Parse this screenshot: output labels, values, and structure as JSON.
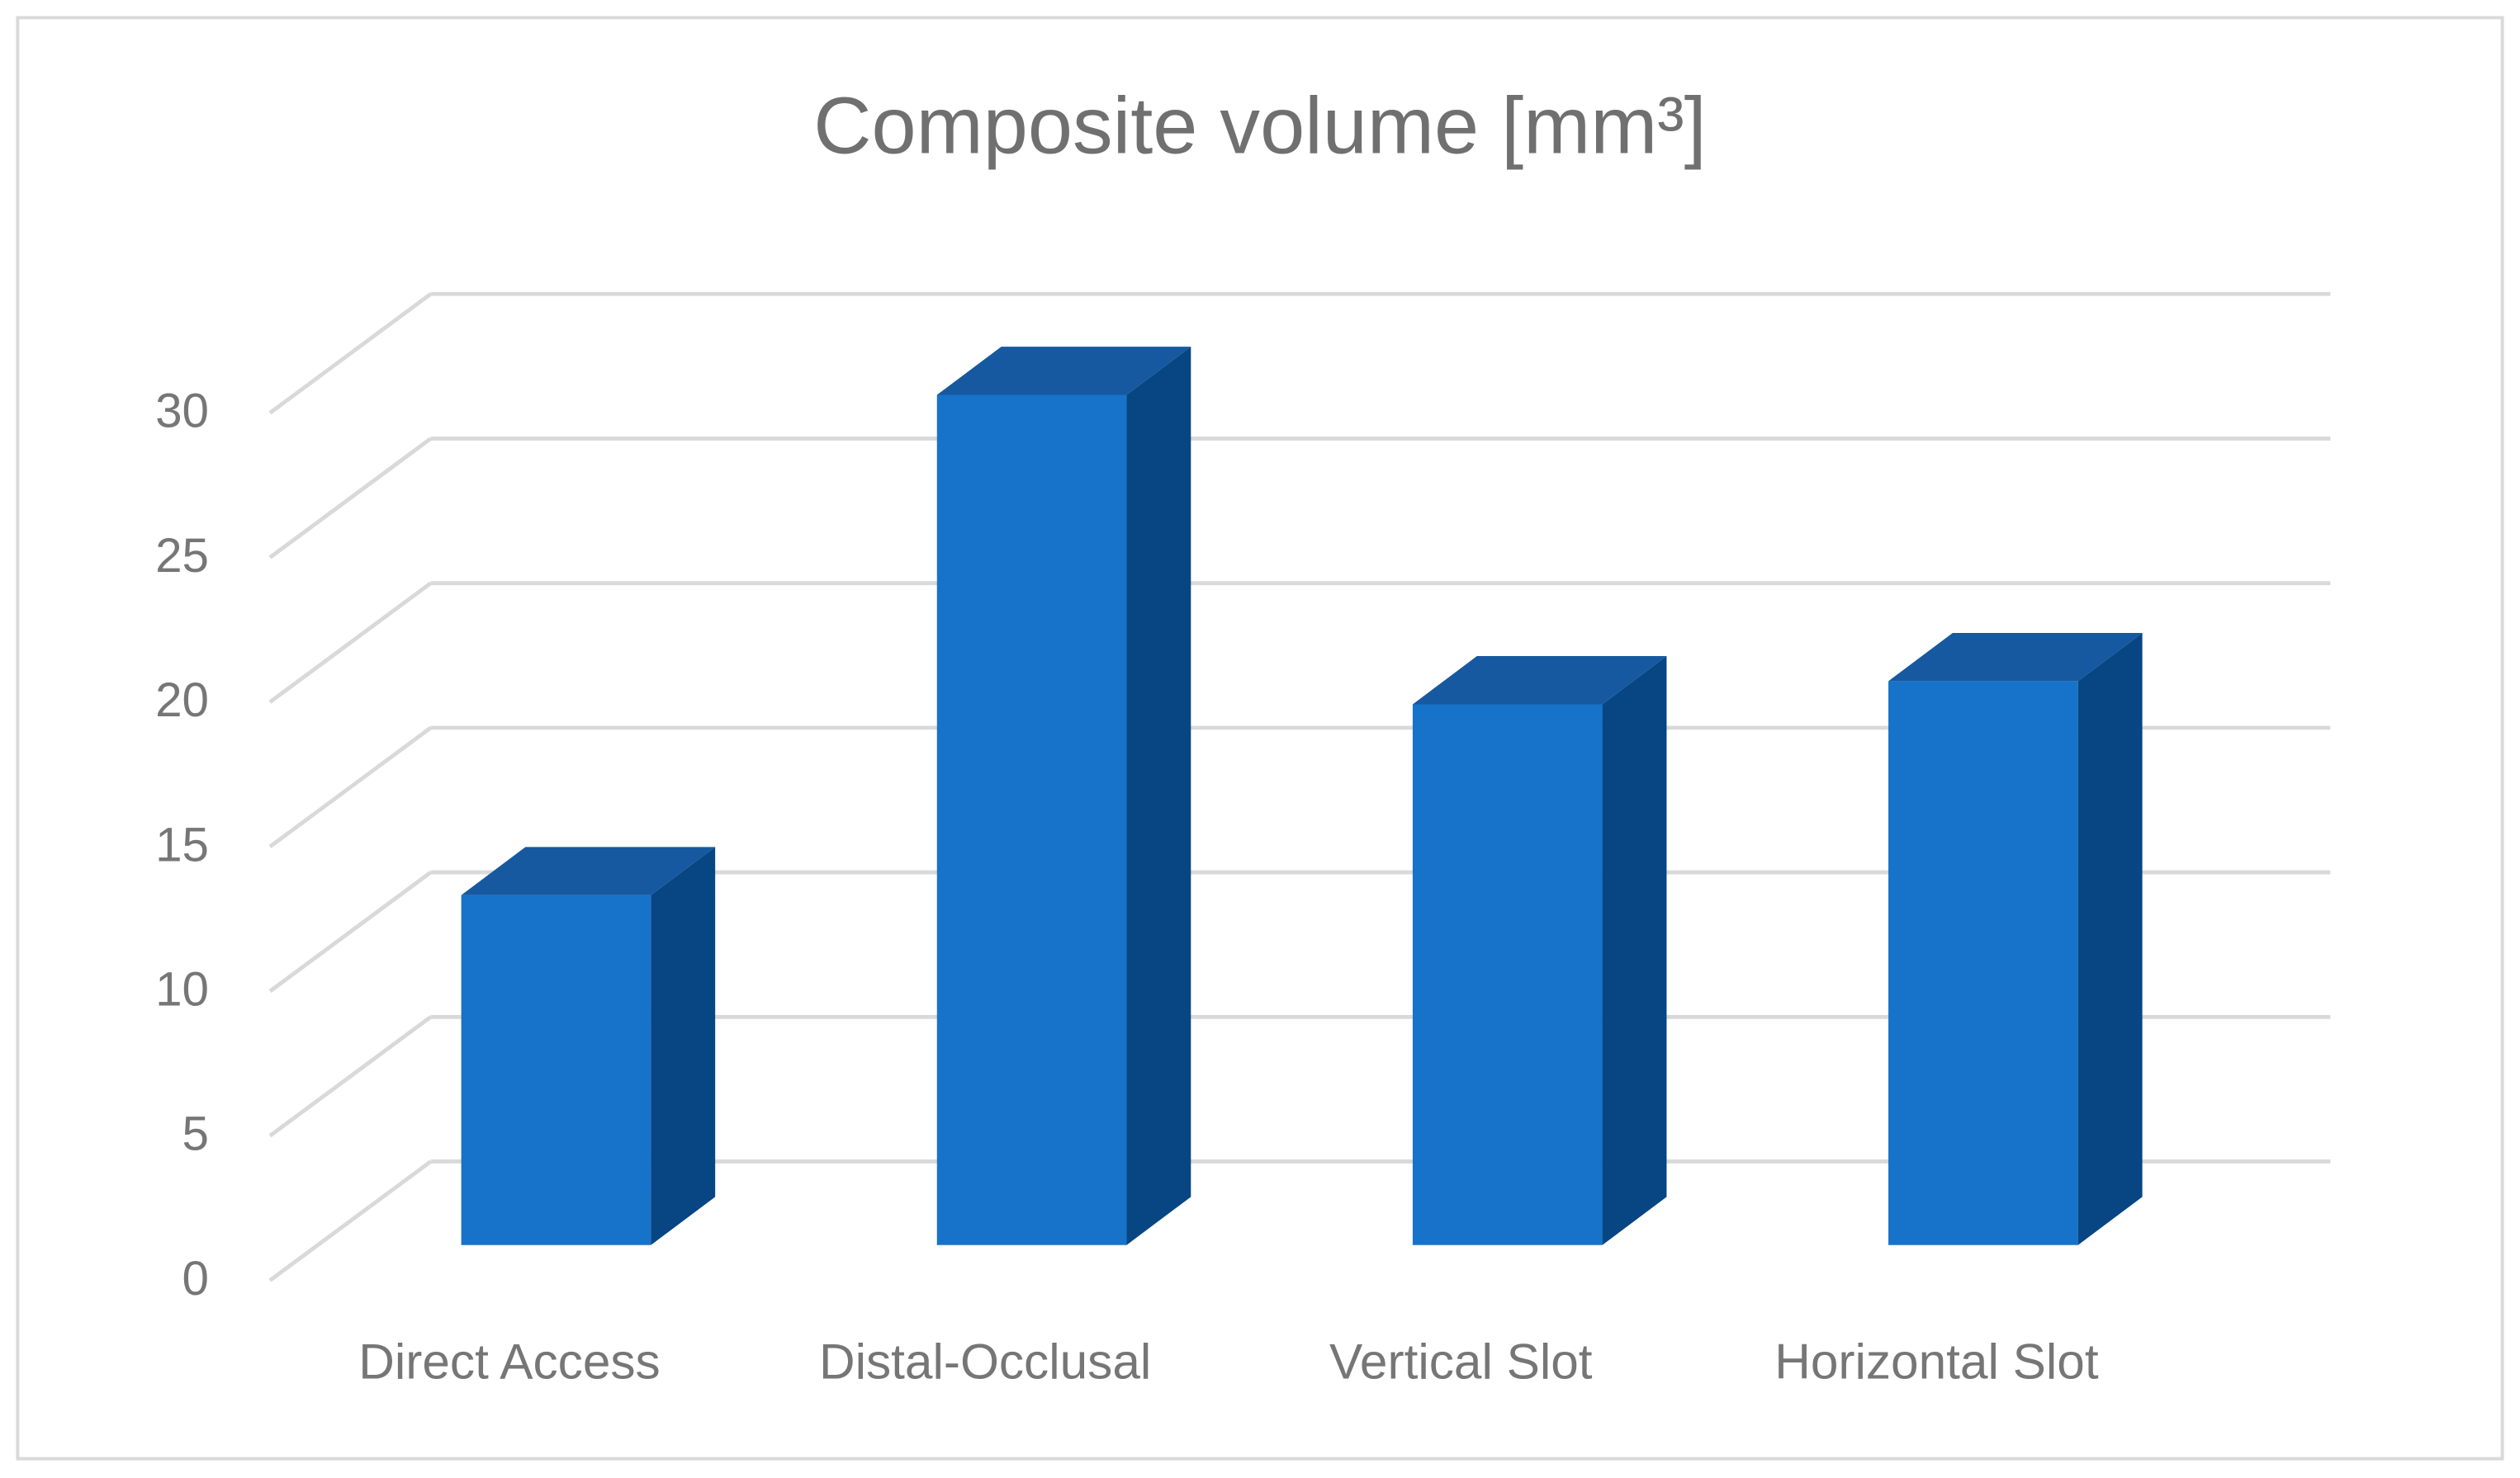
{
  "chart_data": {
    "type": "bar3d",
    "title": "Composite volume [mm³]",
    "categories": [
      "Direct Access",
      "Distal-Occlusal",
      "Vertical Slot",
      "Horizontal Slot"
    ],
    "values": [
      12.1,
      29.4,
      18.7,
      19.5
    ],
    "color": "#1673c9",
    "ylim": [
      0,
      30
    ],
    "yticks": [
      0,
      5,
      10,
      15,
      20,
      25,
      30
    ],
    "grid": true
  }
}
